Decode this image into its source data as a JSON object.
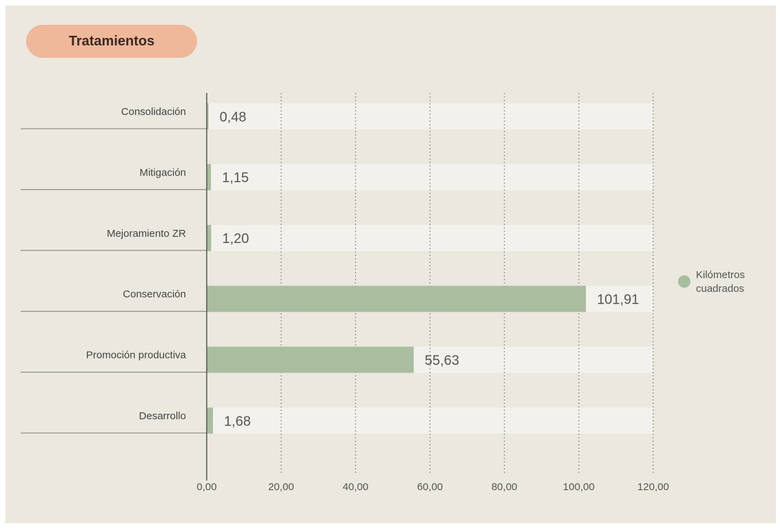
{
  "chart_data": {
    "type": "hbar",
    "title": "Tratamientos",
    "categories": [
      "Consolidación",
      "Mitigación",
      "Mejoramiento ZR",
      "Conservación",
      "Promoción productiva",
      "Desarrollo"
    ],
    "series": [
      {
        "name": "Kilómetros cuadrados",
        "color": "#a9bd9f",
        "values": [
          0.48,
          1.15,
          1.2,
          101.91,
          55.63,
          1.68
        ],
        "value_labels": [
          "0,48",
          "1,15",
          "1,20",
          "101,91",
          "55,63",
          "1,68"
        ]
      }
    ],
    "xlim": [
      0,
      120
    ],
    "xticks": [
      {
        "value": 0,
        "label": "0,00"
      },
      {
        "value": 20,
        "label": "20,00"
      },
      {
        "value": 40,
        "label": "40,00"
      },
      {
        "value": 60,
        "label": "60,00"
      },
      {
        "value": 80,
        "label": "80,00"
      },
      {
        "value": 100,
        "label": "100,00"
      },
      {
        "value": 120,
        "label": "120,00"
      }
    ],
    "grid": true,
    "legend": "right"
  }
}
